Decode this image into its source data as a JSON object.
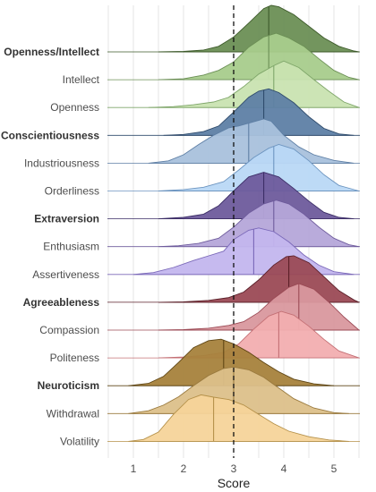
{
  "chart_data": {
    "type": "ridgeline",
    "xlabel": "Score",
    "xlim": [
      0.5,
      5.5
    ],
    "xticks": [
      1,
      2,
      3,
      4,
      5
    ],
    "reference_line": 3,
    "grid": true,
    "series": [
      {
        "name": "Openness/Intellect",
        "bold": true,
        "color": "#6b8f55",
        "edge": "#3d5a2a",
        "median": 3.7,
        "density": [
          [
            1.5,
            0
          ],
          [
            2.0,
            0.01
          ],
          [
            2.4,
            0.04
          ],
          [
            2.7,
            0.12
          ],
          [
            3.0,
            0.32
          ],
          [
            3.3,
            0.62
          ],
          [
            3.6,
            0.93
          ],
          [
            3.75,
            1.0
          ],
          [
            3.9,
            0.97
          ],
          [
            4.2,
            0.8
          ],
          [
            4.5,
            0.55
          ],
          [
            4.8,
            0.3
          ],
          [
            5.1,
            0.12
          ],
          [
            5.4,
            0.02
          ],
          [
            5.5,
            0
          ]
        ]
      },
      {
        "name": "Intellect",
        "bold": false,
        "color": "#a8cc8c",
        "edge": "#6b8f55",
        "median": 3.7,
        "density": [
          [
            1.5,
            0
          ],
          [
            2.0,
            0.02
          ],
          [
            2.4,
            0.1
          ],
          [
            2.7,
            0.2
          ],
          [
            3.0,
            0.38
          ],
          [
            3.3,
            0.7
          ],
          [
            3.6,
            0.92
          ],
          [
            3.85,
            1.0
          ],
          [
            4.1,
            0.9
          ],
          [
            4.4,
            0.72
          ],
          [
            4.7,
            0.45
          ],
          [
            5.0,
            0.2
          ],
          [
            5.3,
            0.05
          ],
          [
            5.5,
            0
          ]
        ]
      },
      {
        "name": "Openness",
        "bold": false,
        "color": "#c9e3b1",
        "edge": "#7fa66a",
        "median": 3.8,
        "density": [
          [
            1.3,
            0
          ],
          [
            1.8,
            0.02
          ],
          [
            2.2,
            0.06
          ],
          [
            2.6,
            0.12
          ],
          [
            2.9,
            0.22
          ],
          [
            3.2,
            0.45
          ],
          [
            3.5,
            0.72
          ],
          [
            3.8,
            0.9
          ],
          [
            4.0,
            1.0
          ],
          [
            4.3,
            0.86
          ],
          [
            4.6,
            0.6
          ],
          [
            4.9,
            0.35
          ],
          [
            5.2,
            0.12
          ],
          [
            5.5,
            0
          ]
        ]
      },
      {
        "name": "Conscientiousness",
        "bold": true,
        "color": "#5e7fa5",
        "edge": "#2e4a6b",
        "median": 3.6,
        "density": [
          [
            1.6,
            0
          ],
          [
            2.0,
            0.02
          ],
          [
            2.4,
            0.08
          ],
          [
            2.7,
            0.2
          ],
          [
            3.0,
            0.5
          ],
          [
            3.3,
            0.82
          ],
          [
            3.5,
            0.95
          ],
          [
            3.7,
            1.0
          ],
          [
            3.9,
            0.92
          ],
          [
            4.2,
            0.7
          ],
          [
            4.5,
            0.4
          ],
          [
            4.8,
            0.15
          ],
          [
            5.1,
            0.03
          ],
          [
            5.4,
            0
          ]
        ]
      },
      {
        "name": "Industriousness",
        "bold": false,
        "color": "#a9c1dc",
        "edge": "#5e7fa5",
        "median": 3.3,
        "density": [
          [
            1.3,
            0
          ],
          [
            1.7,
            0.05
          ],
          [
            2.0,
            0.18
          ],
          [
            2.3,
            0.4
          ],
          [
            2.6,
            0.6
          ],
          [
            2.9,
            0.76
          ],
          [
            3.1,
            0.8
          ],
          [
            3.3,
            0.86
          ],
          [
            3.6,
            0.95
          ],
          [
            3.75,
            0.9
          ],
          [
            4.0,
            0.6
          ],
          [
            4.3,
            0.35
          ],
          [
            4.6,
            0.18
          ],
          [
            5.0,
            0.06
          ],
          [
            5.4,
            0
          ]
        ]
      },
      {
        "name": "Orderliness",
        "bold": false,
        "color": "#b9d8f5",
        "edge": "#6d95c0",
        "median": 3.8,
        "density": [
          [
            1.5,
            0
          ],
          [
            2.0,
            0.03
          ],
          [
            2.4,
            0.08
          ],
          [
            2.8,
            0.2
          ],
          [
            3.1,
            0.45
          ],
          [
            3.4,
            0.72
          ],
          [
            3.7,
            0.92
          ],
          [
            3.9,
            1.0
          ],
          [
            4.2,
            0.9
          ],
          [
            4.5,
            0.65
          ],
          [
            4.8,
            0.35
          ],
          [
            5.1,
            0.12
          ],
          [
            5.5,
            0
          ]
        ]
      },
      {
        "name": "Extraversion",
        "bold": true,
        "color": "#6e5b9c",
        "edge": "#3b2d66",
        "median": 3.6,
        "density": [
          [
            1.5,
            0
          ],
          [
            2.0,
            0.03
          ],
          [
            2.4,
            0.1
          ],
          [
            2.7,
            0.28
          ],
          [
            3.0,
            0.6
          ],
          [
            3.3,
            0.9
          ],
          [
            3.6,
            1.0
          ],
          [
            3.9,
            0.9
          ],
          [
            4.2,
            0.65
          ],
          [
            4.5,
            0.38
          ],
          [
            4.8,
            0.14
          ],
          [
            5.1,
            0.03
          ],
          [
            5.4,
            0
          ]
        ]
      },
      {
        "name": "Enthusiasm",
        "bold": false,
        "color": "#b5a7d9",
        "edge": "#6e5b9c",
        "median": 3.8,
        "density": [
          [
            1.5,
            0
          ],
          [
            1.9,
            0.02
          ],
          [
            2.3,
            0.07
          ],
          [
            2.7,
            0.18
          ],
          [
            3.0,
            0.42
          ],
          [
            3.3,
            0.72
          ],
          [
            3.6,
            0.92
          ],
          [
            3.85,
            1.0
          ],
          [
            4.1,
            0.92
          ],
          [
            4.4,
            0.7
          ],
          [
            4.7,
            0.42
          ],
          [
            5.0,
            0.18
          ],
          [
            5.3,
            0.04
          ],
          [
            5.5,
            0
          ]
        ]
      },
      {
        "name": "Assertiveness",
        "bold": false,
        "color": "#c3b6ee",
        "edge": "#7a68b8",
        "median": 3.4,
        "density": [
          [
            1.0,
            0
          ],
          [
            1.4,
            0.04
          ],
          [
            1.8,
            0.15
          ],
          [
            2.2,
            0.3
          ],
          [
            2.5,
            0.4
          ],
          [
            2.8,
            0.5
          ],
          [
            3.0,
            0.75
          ],
          [
            3.3,
            0.95
          ],
          [
            3.5,
            1.0
          ],
          [
            3.8,
            0.92
          ],
          [
            4.1,
            0.7
          ],
          [
            4.4,
            0.42
          ],
          [
            4.7,
            0.2
          ],
          [
            5.0,
            0.06
          ],
          [
            5.4,
            0
          ]
        ]
      },
      {
        "name": "Agreeableness",
        "bold": true,
        "color": "#9b4a55",
        "edge": "#5a1f28",
        "median": 4.1,
        "density": [
          [
            1.5,
            0
          ],
          [
            2.0,
            0.01
          ],
          [
            2.5,
            0.04
          ],
          [
            2.9,
            0.1
          ],
          [
            3.2,
            0.22
          ],
          [
            3.5,
            0.48
          ],
          [
            3.8,
            0.8
          ],
          [
            4.05,
            0.98
          ],
          [
            4.2,
            1.0
          ],
          [
            4.5,
            0.85
          ],
          [
            4.8,
            0.55
          ],
          [
            5.1,
            0.25
          ],
          [
            5.4,
            0.05
          ],
          [
            5.5,
            0
          ]
        ]
      },
      {
        "name": "Compassion",
        "bold": false,
        "color": "#d9989e",
        "edge": "#9b4a55",
        "median": 4.3,
        "density": [
          [
            1.5,
            0
          ],
          [
            2.0,
            0.01
          ],
          [
            2.5,
            0.04
          ],
          [
            2.9,
            0.1
          ],
          [
            3.2,
            0.18
          ],
          [
            3.5,
            0.38
          ],
          [
            3.8,
            0.68
          ],
          [
            4.1,
            0.92
          ],
          [
            4.3,
            1.0
          ],
          [
            4.6,
            0.88
          ],
          [
            4.9,
            0.6
          ],
          [
            5.2,
            0.28
          ],
          [
            5.5,
            0
          ]
        ]
      },
      {
        "name": "Politeness",
        "bold": false,
        "color": "#f2aeb0",
        "edge": "#c47075",
        "median": 3.9,
        "density": [
          [
            1.5,
            0
          ],
          [
            2.0,
            0.02
          ],
          [
            2.4,
            0.05
          ],
          [
            2.8,
            0.12
          ],
          [
            3.1,
            0.3
          ],
          [
            3.4,
            0.62
          ],
          [
            3.7,
            0.9
          ],
          [
            3.95,
            1.0
          ],
          [
            4.2,
            0.92
          ],
          [
            4.5,
            0.68
          ],
          [
            4.8,
            0.4
          ],
          [
            5.1,
            0.15
          ],
          [
            5.5,
            0
          ]
        ]
      },
      {
        "name": "Neuroticism",
        "bold": true,
        "color": "#a6823c",
        "edge": "#5e4514",
        "median": 2.8,
        "density": [
          [
            0.9,
            0
          ],
          [
            1.3,
            0.05
          ],
          [
            1.6,
            0.2
          ],
          [
            1.9,
            0.5
          ],
          [
            2.2,
            0.82
          ],
          [
            2.5,
            0.97
          ],
          [
            2.75,
            1.0
          ],
          [
            3.0,
            0.9
          ],
          [
            3.3,
            0.72
          ],
          [
            3.6,
            0.5
          ],
          [
            3.9,
            0.3
          ],
          [
            4.2,
            0.14
          ],
          [
            4.6,
            0.04
          ],
          [
            5.0,
            0
          ]
        ]
      },
      {
        "name": "Withdrawal",
        "bold": false,
        "color": "#dcc08a",
        "edge": "#9a7a3e",
        "median": 3.0,
        "density": [
          [
            0.9,
            0
          ],
          [
            1.3,
            0.06
          ],
          [
            1.6,
            0.18
          ],
          [
            1.9,
            0.36
          ],
          [
            2.2,
            0.6
          ],
          [
            2.5,
            0.82
          ],
          [
            2.8,
            0.97
          ],
          [
            3.0,
            1.0
          ],
          [
            3.3,
            0.94
          ],
          [
            3.6,
            0.78
          ],
          [
            3.9,
            0.55
          ],
          [
            4.2,
            0.32
          ],
          [
            4.6,
            0.12
          ],
          [
            5.0,
            0.02
          ],
          [
            5.3,
            0
          ]
        ]
      },
      {
        "name": "Volatility",
        "bold": false,
        "color": "#f5d49a",
        "edge": "#b5914a",
        "median": 2.6,
        "density": [
          [
            0.9,
            0
          ],
          [
            1.2,
            0.04
          ],
          [
            1.5,
            0.2
          ],
          [
            1.8,
            0.58
          ],
          [
            2.1,
            0.9
          ],
          [
            2.35,
            1.0
          ],
          [
            2.6,
            0.95
          ],
          [
            2.9,
            0.9
          ],
          [
            3.2,
            0.78
          ],
          [
            3.5,
            0.58
          ],
          [
            3.8,
            0.38
          ],
          [
            4.1,
            0.22
          ],
          [
            4.5,
            0.1
          ],
          [
            4.9,
            0.03
          ],
          [
            5.3,
            0
          ]
        ]
      }
    ]
  }
}
